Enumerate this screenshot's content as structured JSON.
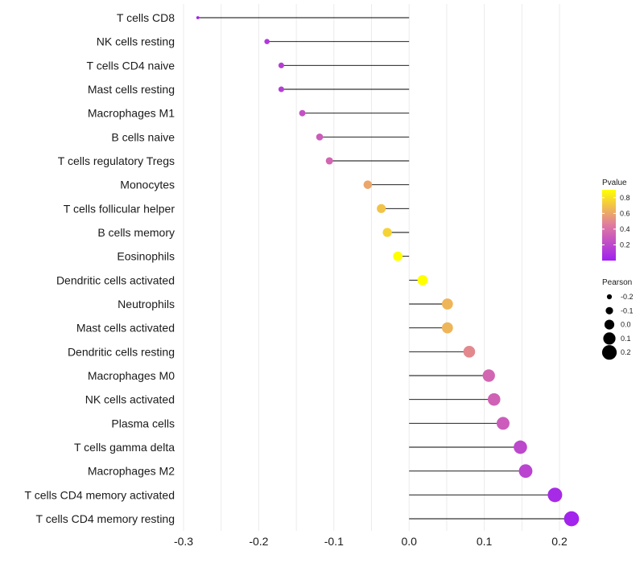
{
  "chart_data": {
    "type": "lollipop",
    "title": "",
    "xlabel": "",
    "ylabel": "",
    "xlim": [
      -0.3,
      0.22
    ],
    "xticks": [
      -0.3,
      -0.2,
      -0.1,
      0.0,
      0.1,
      0.2
    ],
    "xtick_labels": [
      "-0.3",
      "-0.2",
      "-0.1",
      "0.0",
      "0.1",
      "0.2"
    ],
    "categories": [
      "T cells CD8",
      "NK cells resting",
      "T cells CD4 naive",
      "Mast cells resting",
      "Macrophages M1",
      "B cells naive",
      "T cells regulatory  Tregs ",
      "Monocytes",
      "T cells follicular helper",
      "B cells memory",
      "Eosinophils",
      "Dendritic cells activated",
      "Neutrophils",
      "Mast cells activated",
      "Dendritic cells resting",
      "Macrophages M0",
      "NK cells activated",
      "Plasma cells",
      "T cells gamma delta",
      "Macrophages M2",
      "T cells CD4 memory activated",
      "T cells CD4 memory resting"
    ],
    "pearson": [
      -0.281,
      -0.189,
      -0.17,
      -0.17,
      -0.142,
      -0.119,
      -0.106,
      -0.055,
      -0.037,
      -0.029,
      -0.015,
      0.018,
      0.051,
      0.051,
      0.08,
      0.106,
      0.113,
      0.125,
      0.148,
      0.155,
      0.194,
      0.216
    ],
    "pvalue": [
      0.01,
      0.12,
      0.15,
      0.15,
      0.25,
      0.3,
      0.35,
      0.6,
      0.7,
      0.75,
      0.9,
      0.9,
      0.65,
      0.65,
      0.5,
      0.35,
      0.33,
      0.3,
      0.2,
      0.18,
      0.05,
      0.02
    ],
    "legend_position": "right",
    "legends": {
      "color": {
        "title": "Pvalue",
        "ticks": [
          0.8,
          0.6,
          0.4,
          0.2
        ],
        "tick_labels": [
          "0.8",
          "0.6",
          "0.4",
          "0.2"
        ],
        "range": [
          0.0,
          0.9
        ],
        "low_color": "#a020f0",
        "mid_color": "#e07aa0",
        "high_color": "#ffff00"
      },
      "size": {
        "title": "Pearson",
        "values": [
          -0.2,
          -0.1,
          0.0,
          0.1,
          0.2
        ],
        "labels": [
          "-0.2",
          "-0.1",
          "0.0",
          "0.1",
          "0.2"
        ]
      }
    }
  }
}
